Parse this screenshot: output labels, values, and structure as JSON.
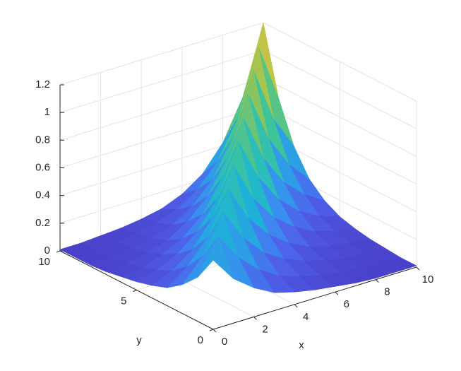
{
  "chart_data": {
    "type": "surface",
    "xlabel": "x",
    "ylabel": "y",
    "x": [
      0,
      1,
      2,
      3,
      4,
      5,
      6,
      7,
      8,
      9,
      10
    ],
    "y": [
      0,
      1,
      2,
      3,
      4,
      5,
      6,
      7,
      8,
      9,
      10
    ],
    "z": [
      [
        0.5,
        0.32,
        0.21,
        0.13,
        0.09,
        0.06,
        0.04,
        0.02,
        0.01,
        0.01,
        0.01
      ],
      [
        0.32,
        0.57,
        0.37,
        0.24,
        0.15,
        0.1,
        0.06,
        0.04,
        0.02,
        0.02,
        0.01
      ],
      [
        0.21,
        0.37,
        0.64,
        0.41,
        0.26,
        0.17,
        0.11,
        0.07,
        0.04,
        0.03,
        0.02
      ],
      [
        0.13,
        0.24,
        0.41,
        0.71,
        0.45,
        0.29,
        0.18,
        0.11,
        0.07,
        0.05,
        0.03
      ],
      [
        0.09,
        0.15,
        0.26,
        0.45,
        0.78,
        0.49,
        0.31,
        0.2,
        0.12,
        0.08,
        0.05
      ],
      [
        0.06,
        0.1,
        0.17,
        0.29,
        0.49,
        0.85,
        0.54,
        0.34,
        0.21,
        0.13,
        0.08
      ],
      [
        0.04,
        0.06,
        0.11,
        0.18,
        0.31,
        0.54,
        0.92,
        0.58,
        0.36,
        0.23,
        0.14
      ],
      [
        0.02,
        0.04,
        0.07,
        0.11,
        0.2,
        0.34,
        0.58,
        0.99,
        0.62,
        0.39,
        0.24
      ],
      [
        0.01,
        0.02,
        0.04,
        0.07,
        0.12,
        0.21,
        0.36,
        0.62,
        1.06,
        0.66,
        0.42
      ],
      [
        0.01,
        0.02,
        0.03,
        0.05,
        0.08,
        0.13,
        0.23,
        0.39,
        0.66,
        1.13,
        0.71
      ],
      [
        0.01,
        0.01,
        0.02,
        0.03,
        0.05,
        0.08,
        0.14,
        0.24,
        0.42,
        0.71,
        1.2
      ]
    ],
    "xlim": [
      0,
      10
    ],
    "ylim": [
      0,
      10
    ],
    "zlim": [
      0,
      1.2
    ],
    "xticks": [
      0,
      2,
      4,
      6,
      8,
      10
    ],
    "yticks": [
      0,
      5,
      10
    ],
    "zticks": [
      0,
      0.2,
      0.4,
      0.6,
      0.8,
      1,
      1.2
    ],
    "grid": true,
    "colormap": [
      "#4a3fc8",
      "#4f5fe8",
      "#3a8ef0",
      "#1cb4d6",
      "#3ec49a",
      "#9cc452",
      "#eec33a",
      "#f9f50e"
    ]
  }
}
